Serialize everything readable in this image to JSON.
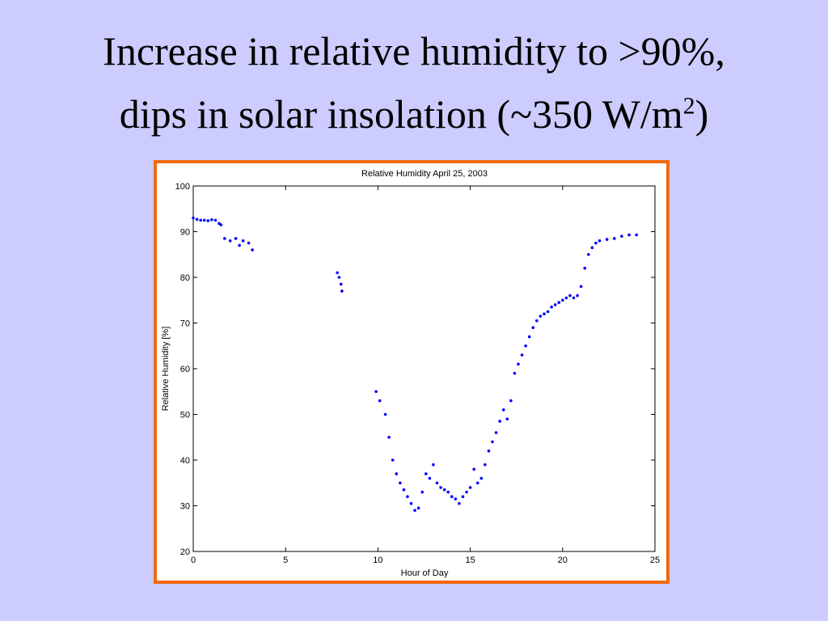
{
  "slide": {
    "title_line1": "Increase in relative humidity to >90%,",
    "title_line2": "dips in solar insolation (~350 W/m",
    "title_superscript": "2",
    "title_end": ")"
  },
  "chart_data": {
    "type": "scatter",
    "title": "Relative Humidity April 25, 2003",
    "x_label": "Hour of Day",
    "y_label": "Relative Humidity [%]",
    "color": "#0000ff",
    "x": [
      0,
      0.2,
      0.4,
      0.6,
      0.8,
      1.0,
      1.2,
      1.4,
      1.5,
      1.7,
      2.0,
      2.3,
      2.5,
      2.7,
      3.0,
      3.2,
      7.8,
      7.9,
      8.0,
      8.05,
      9.9,
      10.1,
      10.4,
      10.6,
      10.8,
      11.0,
      11.2,
      11.4,
      11.6,
      11.8,
      12.0,
      12.2,
      12.4,
      12.6,
      12.8,
      13.0,
      13.2,
      13.4,
      13.6,
      13.8,
      14.0,
      14.2,
      14.4,
      14.6,
      14.8,
      15.0,
      15.2,
      15.4,
      15.6,
      15.8,
      16.0,
      16.2,
      16.4,
      16.6,
      16.8,
      17.0,
      17.2,
      17.4,
      17.6,
      17.8,
      18.0,
      18.2,
      18.4,
      18.6,
      18.8,
      19.0,
      19.2,
      19.4,
      19.6,
      19.8,
      20.0,
      20.2,
      20.4,
      20.6,
      20.8,
      21.0,
      21.2,
      21.4,
      21.6,
      21.8,
      22.0,
      22.4,
      22.8,
      23.2,
      23.6,
      24.0
    ],
    "values": [
      93,
      92.7,
      92.5,
      92.5,
      92.4,
      92.6,
      92.5,
      91.8,
      91.5,
      88.5,
      88,
      88.5,
      87,
      88,
      87.5,
      86,
      81,
      80,
      78.5,
      77,
      55,
      53,
      50,
      45,
      40,
      37,
      35,
      33.5,
      32,
      30.5,
      29,
      29.5,
      33,
      37,
      36,
      39,
      35,
      34,
      33.5,
      33,
      32,
      31.5,
      30.5,
      32,
      33,
      34,
      38,
      35,
      36,
      39,
      42,
      44,
      46,
      48.5,
      51,
      49,
      53,
      59,
      61,
      63,
      65,
      67,
      69,
      70.5,
      71.5,
      72,
      72.5,
      73.5,
      74,
      74.5,
      75,
      75.5,
      76,
      75.5,
      76,
      78,
      82,
      85,
      86.5,
      87.5,
      88,
      88.3,
      88.5,
      89,
      89.3,
      89.3
    ],
    "xlim": [
      0,
      25
    ],
    "xticks": [
      0,
      5,
      10,
      15,
      20,
      25
    ],
    "ylim": [
      20,
      100
    ],
    "yticks": [
      20,
      30,
      40,
      50,
      60,
      70,
      80,
      90,
      100
    ]
  }
}
